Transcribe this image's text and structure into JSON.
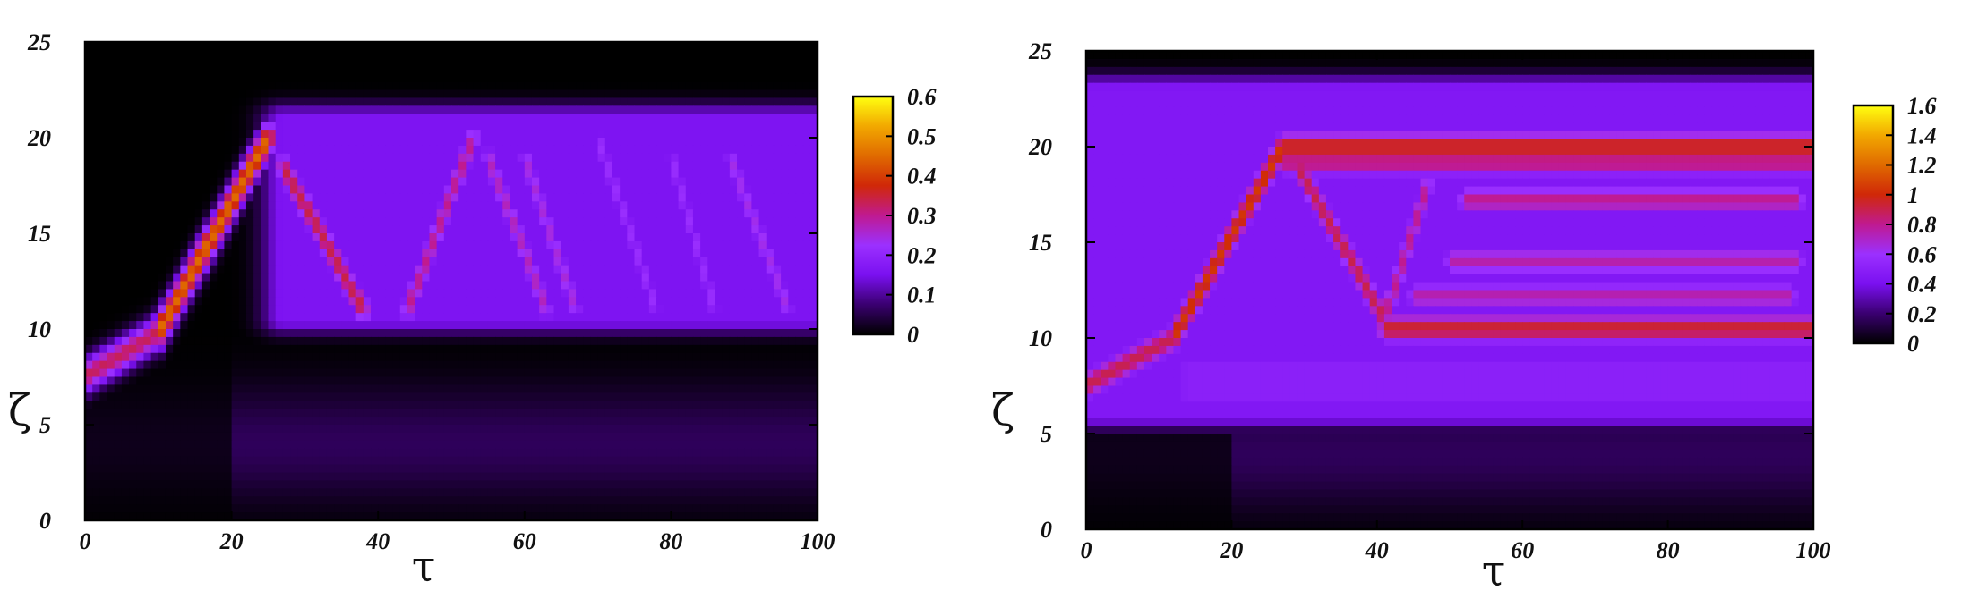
{
  "chart_data": [
    {
      "type": "heatmap",
      "xlabel": "τ",
      "ylabel": "ζ",
      "xlim": [
        0,
        100
      ],
      "ylim": [
        0,
        25
      ],
      "xticks": [
        "0",
        "20",
        "40",
        "60",
        "80",
        "100"
      ],
      "yticks": [
        "0",
        "5",
        "10",
        "15",
        "20",
        "25"
      ],
      "colorbar": {
        "range": [
          0,
          0.6
        ],
        "ticks": [
          "0",
          "0.1",
          "0.2",
          "0.3",
          "0.4",
          "0.5",
          "0.6"
        ]
      },
      "colormap": [
        "#000000",
        "#3a0070",
        "#7a10f0",
        "#9b30ff",
        "#c01a90",
        "#d02808",
        "#e06a00",
        "#f2a800",
        "#ffff10"
      ],
      "features": [
        {
          "kind": "beam",
          "from": [
            0,
            7.5
          ],
          "to": [
            10,
            9.8
          ],
          "value": 0.33
        },
        {
          "kind": "beam",
          "from": [
            10,
            9.8
          ],
          "to": [
            25,
            20
          ],
          "value": 0.45
        },
        {
          "kind": "beam",
          "from": [
            27,
            18.5
          ],
          "to": [
            38,
            11
          ],
          "value": 0.34
        },
        {
          "kind": "beam",
          "from": [
            44,
            11
          ],
          "to": [
            53,
            20
          ],
          "value": 0.3
        },
        {
          "kind": "beam",
          "from": [
            55,
            19
          ],
          "to": [
            63,
            11
          ],
          "value": 0.27
        },
        {
          "kind": "beam",
          "from": [
            60,
            19
          ],
          "to": [
            67,
            11
          ],
          "value": 0.25
        },
        {
          "kind": "beam",
          "from": [
            70,
            20
          ],
          "to": [
            78,
            11
          ],
          "value": 0.22
        },
        {
          "kind": "beam",
          "from": [
            80,
            19
          ],
          "to": [
            86,
            11
          ],
          "value": 0.22
        },
        {
          "kind": "beam",
          "from": [
            88,
            19
          ],
          "to": [
            96,
            11
          ],
          "value": 0.24
        },
        {
          "kind": "band",
          "x": [
            27,
            100
          ],
          "y": [
            10.5,
            21
          ],
          "value": 0.16
        }
      ]
    },
    {
      "type": "heatmap",
      "xlabel": "τ",
      "ylabel": "ζ",
      "xlim": [
        0,
        100
      ],
      "ylim": [
        0,
        25
      ],
      "xticks": [
        "0",
        "20",
        "40",
        "60",
        "80",
        "100"
      ],
      "yticks": [
        "0",
        "5",
        "10",
        "15",
        "20",
        "25"
      ],
      "colorbar": {
        "range": [
          0,
          1.6
        ],
        "ticks": [
          "0",
          "0.2",
          "0.4",
          "0.6",
          "0.8",
          "1",
          "1.2",
          "1.4",
          "1.6"
        ]
      },
      "colormap": [
        "#000000",
        "#3a0070",
        "#7a10f0",
        "#9b30ff",
        "#c01a90",
        "#d02808",
        "#e06a00",
        "#f2a800",
        "#ffff10"
      ],
      "features": [
        {
          "kind": "beam",
          "from": [
            0,
            7.5
          ],
          "to": [
            12,
            10
          ],
          "value": 0.9
        },
        {
          "kind": "beam",
          "from": [
            12,
            10
          ],
          "to": [
            27,
            20
          ],
          "value": 1.05
        },
        {
          "kind": "beam",
          "from": [
            27,
            20
          ],
          "to": [
            100,
            20
          ],
          "value": 1.0
        },
        {
          "kind": "beam",
          "from": [
            27,
            19.2
          ],
          "to": [
            100,
            19.2
          ],
          "value": 0.85
        },
        {
          "kind": "beam",
          "from": [
            29,
            19
          ],
          "to": [
            41,
            11
          ],
          "value": 0.9
        },
        {
          "kind": "beam",
          "from": [
            41,
            10.5
          ],
          "to": [
            100,
            10.5
          ],
          "value": 0.95
        },
        {
          "kind": "beam",
          "from": [
            41,
            11
          ],
          "to": [
            47,
            18
          ],
          "value": 0.8
        },
        {
          "kind": "beam",
          "from": [
            50,
            14
          ],
          "to": [
            98,
            14
          ],
          "value": 0.75
        },
        {
          "kind": "beam",
          "from": [
            52,
            17.2
          ],
          "to": [
            98,
            17.2
          ],
          "value": 0.8
        },
        {
          "kind": "beam",
          "from": [
            45,
            12.2
          ],
          "to": [
            97,
            12.2
          ],
          "value": 0.75
        },
        {
          "kind": "band",
          "x": [
            0,
            100
          ],
          "y": [
            6,
            23
          ],
          "value": 0.45
        },
        {
          "kind": "band",
          "x": [
            14,
            100
          ],
          "y": [
            6.8,
            8.6
          ],
          "value": 0.5
        }
      ]
    }
  ]
}
